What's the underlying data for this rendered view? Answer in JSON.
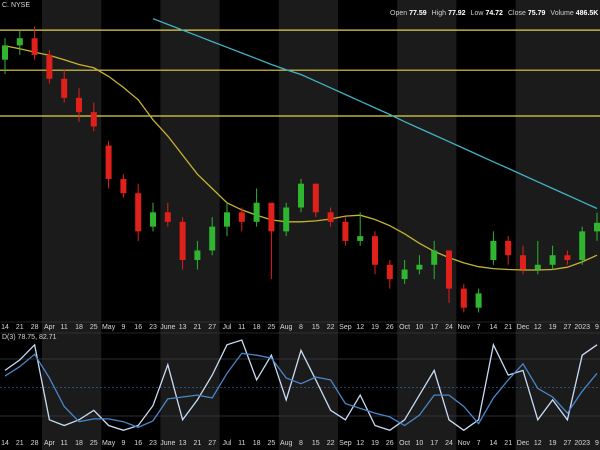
{
  "chart_data": {
    "type": "candlestick",
    "symbol": "C. NYSE",
    "quote": [
      {
        "label": "Open",
        "value": 77.59
      },
      {
        "label": "High",
        "value": 77.92
      },
      {
        "label": "Low",
        "value": 74.72
      },
      {
        "label": "Close",
        "value": 75.79
      },
      {
        "label": "Volume",
        "value": "486.5K"
      }
    ],
    "categories": [
      "14",
      "21",
      "28",
      "Apr",
      "11",
      "18",
      "25",
      "May",
      "9",
      "16",
      "23",
      "June",
      "13",
      "21",
      "27",
      "Jul",
      "11",
      "18",
      "25",
      "Aug",
      "8",
      "15",
      "22",
      "Sep",
      "12",
      "19",
      "26",
      "Oct",
      "10",
      "17",
      "24",
      "Nov",
      "7",
      "14",
      "21",
      "Dec",
      "12",
      "19",
      "27",
      "2023",
      "9"
    ],
    "open": [
      110,
      113,
      114.5,
      111,
      106,
      102,
      99,
      92,
      85,
      82,
      75,
      78,
      76,
      68,
      70,
      75,
      78,
      76,
      80,
      74,
      79,
      84,
      78,
      76,
      72,
      73,
      67,
      64,
      66,
      67,
      70,
      62,
      58,
      68,
      72,
      69,
      66,
      67,
      69,
      68,
      74
    ],
    "high": [
      114.5,
      116,
      117,
      112,
      108,
      104,
      101,
      93,
      86,
      84,
      80,
      80,
      77,
      72,
      77,
      80,
      79,
      83,
      80,
      80,
      85,
      84,
      79,
      77,
      78,
      74,
      68,
      68,
      69,
      72,
      70,
      63,
      62,
      74,
      73,
      71,
      72,
      71,
      70,
      75,
      77.9
    ],
    "low": [
      107,
      111,
      110,
      105,
      101,
      97,
      95,
      83,
      81,
      72,
      74,
      75,
      66,
      66,
      69,
      73,
      74,
      75,
      64,
      73,
      78,
      77,
      75,
      71,
      71,
      65,
      62,
      63,
      65,
      64,
      59,
      57,
      57,
      67,
      67,
      65,
      65,
      66,
      67,
      67,
      72
    ],
    "close": [
      113,
      114.5,
      111,
      106,
      102,
      99,
      96,
      85,
      82,
      74,
      78,
      76,
      68,
      70,
      75,
      78,
      76,
      80,
      74,
      79,
      84,
      78,
      76,
      72,
      73,
      67,
      64,
      66,
      67,
      70,
      62,
      58,
      61,
      72,
      69,
      66,
      67,
      69,
      68,
      74,
      75.8
    ],
    "up_color": "#2fb52f",
    "down_color": "#e0201b",
    "ylim": [
      55,
      120
    ],
    "hlines": [
      {
        "value": 116.2,
        "color": "#e3d24a"
      },
      {
        "value": 107.8,
        "color": "#e3d24a"
      },
      {
        "value": 98.2,
        "color": "#e3d24a"
      }
    ],
    "moving_averages": [
      {
        "color": "#c8b232",
        "values": [
          112.9,
          112.3,
          111.6,
          110.9,
          110,
          109,
          108.3,
          106.5,
          104.2,
          101.6,
          97.4,
          94,
          90,
          86,
          83,
          80,
          78.5,
          77.4,
          76.4,
          76,
          76,
          76.2,
          76.6,
          77.2,
          77.4,
          76.5,
          75.2,
          73.5,
          71.5,
          69.8,
          68.5,
          67.4,
          66.6,
          66.2,
          66,
          65.9,
          65.9,
          66,
          66.5,
          67.6,
          69
        ]
      },
      {
        "color": "#3fb3c4",
        "values": [
          null,
          null,
          null,
          null,
          null,
          null,
          null,
          null,
          null,
          null,
          118.6,
          117.4,
          116.2,
          115,
          113.8,
          112.6,
          111.4,
          110.2,
          109,
          107.9,
          106.9,
          105.5,
          104.1,
          102.7,
          101.3,
          99.9,
          98.5,
          97,
          95.6,
          94.2,
          92.8,
          91.4,
          90,
          88.6,
          87.2,
          85.8,
          84.4,
          83,
          81.6,
          80.2,
          78.8
        ]
      }
    ],
    "stochastic": {
      "label": "D(3) 78.75, 82.71",
      "ylim": [
        0,
        100
      ],
      "levels": [
        80,
        50,
        20
      ],
      "series": [
        {
          "color": "#c9dcf5",
          "values": [
            68,
            79,
            95,
            16,
            10,
            16,
            26,
            10,
            5,
            10,
            31,
            74,
            16,
            37,
            63,
            95,
            100,
            58,
            84,
            37,
            89,
            58,
            26,
            16,
            42,
            10,
            5,
            16,
            42,
            68,
            16,
            5,
            16,
            95,
            63,
            68,
            16,
            37,
            16,
            84,
            95
          ]
        },
        {
          "color": "#4a86c8",
          "values": [
            62,
            72,
            85,
            60,
            30,
            14,
            17,
            17,
            14,
            8,
            15,
            38,
            40,
            42,
            39,
            65,
            86,
            84,
            81,
            60,
            54,
            61,
            58,
            33,
            28,
            23,
            19,
            10,
            21,
            42,
            42,
            30,
            12,
            39,
            58,
            75,
            49,
            40,
            23,
            46,
            65
          ]
        }
      ]
    }
  }
}
